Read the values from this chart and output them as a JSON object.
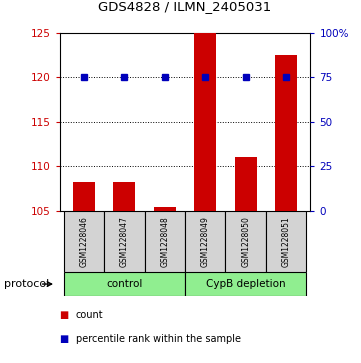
{
  "title": "GDS4828 / ILMN_2405031",
  "samples": [
    "GSM1228046",
    "GSM1228047",
    "GSM1228048",
    "GSM1228049",
    "GSM1228050",
    "GSM1228051"
  ],
  "count_values": [
    108.2,
    108.2,
    105.4,
    125.0,
    111.0,
    122.5
  ],
  "percentile_values": [
    75,
    75,
    75,
    75,
    75,
    75
  ],
  "ylim_left": [
    105,
    125
  ],
  "ylim_right": [
    0,
    100
  ],
  "yticks_left": [
    105,
    110,
    115,
    120,
    125
  ],
  "yticks_right": [
    0,
    25,
    50,
    75,
    100
  ],
  "ytick_labels_right": [
    "0",
    "25",
    "50",
    "75",
    "100%"
  ],
  "bar_color": "#cc0000",
  "dot_color": "#0000bb",
  "group_labels": [
    "control",
    "CypB depletion"
  ],
  "group_color": "#90ee90",
  "protocol_label": "protocol",
  "legend_items": [
    {
      "color": "#cc0000",
      "label": "count"
    },
    {
      "color": "#0000bb",
      "label": "percentile rank within the sample"
    }
  ],
  "background_color": "#ffffff",
  "sample_box_color": "#d3d3d3"
}
